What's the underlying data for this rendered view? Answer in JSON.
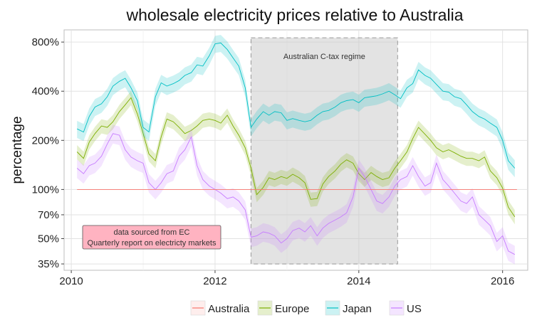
{
  "chart_data": {
    "type": "line",
    "title": "wholesale electricity prices relative to Australia",
    "xlabel": "",
    "ylabel": "percentage",
    "xlim": [
      2009.9,
      2016.35
    ],
    "ylim": [
      32,
      950
    ],
    "y_scale": "log",
    "x_ticks": [
      2010,
      2012,
      2014,
      2016
    ],
    "x_tick_labels": [
      "2010",
      "2012",
      "2014",
      "2016"
    ],
    "y_ticks": [
      35,
      50,
      70,
      100,
      200,
      400,
      800
    ],
    "y_tick_labels": [
      "35%",
      "50%",
      "70%",
      "100%",
      "200%",
      "400%",
      "800%"
    ],
    "grid": true,
    "legend_position": "bottom",
    "annotations": [
      {
        "text": "Australian C-tax regime",
        "kind": "shaded-region",
        "x_range": [
          2012.5,
          2014.54
        ],
        "y_range": [
          35,
          850
        ]
      },
      {
        "lines": [
          "data sourced from EC",
          "Quarterly report on electricty markets"
        ],
        "kind": "note-box"
      }
    ],
    "series": [
      {
        "name": "Australia",
        "color": "#F8766D",
        "band": 0,
        "x": [
          2010.08,
          2016.2
        ],
        "values": [
          100,
          100
        ]
      },
      {
        "name": "Europe",
        "color": "#7CAE00",
        "band": 0.1,
        "x": [
          2010.08,
          2010.17,
          2010.25,
          2010.33,
          2010.42,
          2010.5,
          2010.58,
          2010.67,
          2010.75,
          2010.83,
          2010.92,
          2011.0,
          2011.08,
          2011.17,
          2011.25,
          2011.33,
          2011.42,
          2011.5,
          2011.58,
          2011.67,
          2011.75,
          2011.83,
          2011.92,
          2012.0,
          2012.08,
          2012.17,
          2012.25,
          2012.33,
          2012.42,
          2012.5,
          2012.58,
          2012.67,
          2012.75,
          2012.83,
          2012.92,
          2013.0,
          2013.08,
          2013.17,
          2013.25,
          2013.33,
          2013.42,
          2013.5,
          2013.58,
          2013.67,
          2013.75,
          2013.83,
          2013.92,
          2014.0,
          2014.08,
          2014.17,
          2014.25,
          2014.33,
          2014.42,
          2014.5,
          2014.58,
          2014.67,
          2014.75,
          2014.83,
          2014.92,
          2015.0,
          2015.08,
          2015.17,
          2015.25,
          2015.33,
          2015.42,
          2015.5,
          2015.58,
          2015.67,
          2015.75,
          2015.83,
          2015.92,
          2016.0,
          2016.08,
          2016.17
        ],
        "values": [
          170,
          155,
          195,
          220,
          245,
          240,
          260,
          300,
          330,
          365,
          290,
          220,
          165,
          150,
          210,
          270,
          260,
          240,
          220,
          230,
          245,
          265,
          270,
          265,
          255,
          285,
          245,
          215,
          180,
          135,
          93,
          103,
          118,
          115,
          120,
          117,
          124,
          118,
          110,
          87,
          88,
          108,
          120,
          130,
          143,
          152,
          145,
          125,
          115,
          127,
          120,
          115,
          118,
          135,
          150,
          170,
          205,
          240,
          218,
          200,
          180,
          170,
          175,
          168,
          160,
          155,
          155,
          150,
          158,
          130,
          118,
          102,
          78,
          68
        ]
      },
      {
        "name": "Japan",
        "color": "#00BFC4",
        "band": 0.12,
        "x": [
          2010.08,
          2010.17,
          2010.25,
          2010.33,
          2010.42,
          2010.5,
          2010.58,
          2010.67,
          2010.75,
          2010.83,
          2010.92,
          2011.0,
          2011.08,
          2011.17,
          2011.25,
          2011.33,
          2011.42,
          2011.5,
          2011.58,
          2011.67,
          2011.75,
          2011.83,
          2011.92,
          2012.0,
          2012.08,
          2012.17,
          2012.25,
          2012.33,
          2012.42,
          2012.5,
          2012.58,
          2012.67,
          2012.75,
          2012.83,
          2012.92,
          2013.0,
          2013.08,
          2013.17,
          2013.25,
          2013.33,
          2013.42,
          2013.5,
          2013.58,
          2013.67,
          2013.75,
          2013.83,
          2013.92,
          2014.0,
          2014.08,
          2014.17,
          2014.25,
          2014.33,
          2014.42,
          2014.5,
          2014.58,
          2014.67,
          2014.75,
          2014.83,
          2014.92,
          2015.0,
          2015.08,
          2015.17,
          2015.25,
          2015.33,
          2015.42,
          2015.5,
          2015.58,
          2015.67,
          2015.75,
          2015.83,
          2015.92,
          2016.0,
          2016.08,
          2016.17
        ],
        "values": [
          235,
          225,
          280,
          320,
          335,
          370,
          430,
          460,
          480,
          420,
          350,
          240,
          225,
          370,
          450,
          430,
          445,
          465,
          500,
          520,
          580,
          570,
          660,
          780,
          790,
          720,
          640,
          570,
          420,
          240,
          270,
          300,
          285,
          300,
          295,
          265,
          272,
          265,
          260,
          265,
          285,
          300,
          305,
          320,
          340,
          350,
          355,
          340,
          365,
          370,
          375,
          385,
          400,
          380,
          360,
          420,
          445,
          540,
          500,
          480,
          440,
          400,
          395,
          370,
          360,
          330,
          300,
          280,
          270,
          255,
          240,
          200,
          150,
          135
        ]
      },
      {
        "name": "US",
        "color": "#C77CFF",
        "band": 0.13,
        "x": [
          2010.08,
          2010.17,
          2010.25,
          2010.33,
          2010.42,
          2010.5,
          2010.58,
          2010.67,
          2010.75,
          2010.83,
          2010.92,
          2011.0,
          2011.08,
          2011.17,
          2011.25,
          2011.33,
          2011.42,
          2011.5,
          2011.58,
          2011.67,
          2011.75,
          2011.83,
          2011.92,
          2012.0,
          2012.08,
          2012.17,
          2012.25,
          2012.33,
          2012.42,
          2012.5,
          2012.58,
          2012.67,
          2012.75,
          2012.83,
          2012.92,
          2013.0,
          2013.08,
          2013.17,
          2013.25,
          2013.33,
          2013.42,
          2013.5,
          2013.58,
          2013.67,
          2013.75,
          2013.83,
          2013.92,
          2014.0,
          2014.08,
          2014.17,
          2014.25,
          2014.33,
          2014.42,
          2014.5,
          2014.58,
          2014.67,
          2014.75,
          2014.83,
          2014.92,
          2015.0,
          2015.08,
          2015.17,
          2015.25,
          2015.33,
          2015.42,
          2015.5,
          2015.58,
          2015.67,
          2015.75,
          2015.83,
          2015.92,
          2016.0,
          2016.08,
          2016.17
        ],
        "values": [
          135,
          125,
          140,
          145,
          160,
          190,
          220,
          215,
          175,
          158,
          150,
          145,
          110,
          100,
          110,
          125,
          130,
          160,
          175,
          210,
          140,
          115,
          105,
          100,
          95,
          88,
          90,
          85,
          75,
          51,
          52,
          55,
          54,
          52,
          47,
          50,
          56,
          58,
          55,
          60,
          52,
          58,
          62,
          65,
          68,
          72,
          90,
          135,
          120,
          100,
          85,
          82,
          90,
          105,
          115,
          120,
          140,
          120,
          105,
          110,
          145,
          115,
          105,
          95,
          85,
          82,
          90,
          70,
          65,
          60,
          48,
          52,
          42,
          40
        ]
      }
    ]
  }
}
